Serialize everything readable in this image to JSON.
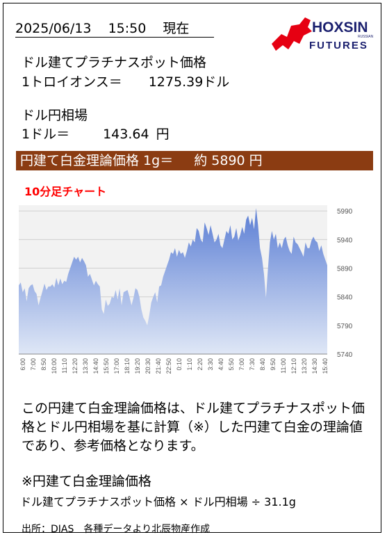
{
  "header": {
    "date": "2025/06/13",
    "time": "15:50",
    "status": "現在"
  },
  "logo": {
    "name": "HOXSIN",
    "sub": "FUTURES",
    "small": "RUSSIAN"
  },
  "platinum": {
    "title": "ドル建てプラチナスポット価格",
    "unit_label": "1トロイオンス＝",
    "value": "1275.39",
    "currency": "ドル"
  },
  "fx": {
    "title": "ドル円相場",
    "unit_label": "1ドル＝",
    "value": "143.64",
    "currency": "円"
  },
  "theory": {
    "label": "円建て白金理論価格 1g＝",
    "approx": "約",
    "value": "5890",
    "currency": "円"
  },
  "chart_title": "10分足チャート",
  "chart_data": {
    "type": "area",
    "ylim": [
      5740,
      6000
    ],
    "yticks": [
      5740,
      5790,
      5840,
      5890,
      5940,
      5990
    ],
    "xticklabels": [
      "6:00",
      "7:00",
      "8:50",
      "10:00",
      "11:10",
      "12:20",
      "13:30",
      "14:40",
      "15:50",
      "17:00",
      "18:10",
      "19:20",
      "20:30",
      "21:40",
      "22:50",
      "0:10",
      "1:10",
      "2:20",
      "3:30",
      "4:40",
      "5:50",
      "7:00",
      "7:30",
      "8:40",
      "9:50",
      "11:00",
      "12:10",
      "13:20",
      "14:30",
      "15:40"
    ],
    "values": [
      5860,
      5865,
      5848,
      5855,
      5832,
      5855,
      5860,
      5862,
      5850,
      5845,
      5825,
      5838,
      5850,
      5863,
      5852,
      5858,
      5858,
      5862,
      5856,
      5873,
      5860,
      5872,
      5862,
      5868,
      5866,
      5880,
      5890,
      5900,
      5910,
      5905,
      5910,
      5900,
      5908,
      5902,
      5895,
      5875,
      5880,
      5870,
      5860,
      5868,
      5862,
      5858,
      5818,
      5810,
      5835,
      5824,
      5828,
      5840,
      5838,
      5852,
      5835,
      5855,
      5825,
      5848,
      5850,
      5852,
      5840,
      5825,
      5838,
      5855,
      5852,
      5840,
      5818,
      5804,
      5798,
      5790,
      5808,
      5830,
      5840,
      5848,
      5830,
      5858,
      5860,
      5875,
      5885,
      5895,
      5905,
      5918,
      5915,
      5925,
      5910,
      5922,
      5915,
      5918,
      5908,
      5920,
      5935,
      5928,
      5940,
      5935,
      5960,
      5955,
      5940,
      5935,
      5970,
      5960,
      5948,
      5965,
      5950,
      5935,
      5940,
      5950,
      5930,
      5925,
      5940,
      5955,
      5950,
      5965,
      5940,
      5945,
      5960,
      5938,
      5948,
      5962,
      5950,
      5975,
      5982,
      5965,
      5978,
      5958,
      5995,
      5965,
      5925,
      5908,
      5880,
      5838,
      5888,
      5935,
      5955,
      5940,
      5950,
      5925,
      5935,
      5925,
      5940,
      5945,
      5930,
      5920,
      5915,
      5945,
      5935,
      5932,
      5925,
      5918,
      5910,
      5935,
      5925,
      5925,
      5938,
      5945,
      5938,
      5935,
      5920,
      5930,
      5915,
      5905,
      5895
    ]
  },
  "description": "この円建て白金理論価格は、ドル建てプラチナスポット価格とドル円相場を基に計算（※）した円建て白金の理論値であり、参考価格となります。",
  "formula": {
    "title": "※円建て白金理論価格",
    "text": "ドル建てプラチナスポット価格 × ドル円相場 ÷ 31.1g"
  },
  "source": "出所：DIAS　各種データより北辰物産作成",
  "colors": {
    "bar_bg": "#8b3c12",
    "chart_title": "#ff0000",
    "area_top": "#5b7ed4",
    "area_bottom": "#dfe7f6",
    "plot_bg": "#f2f2f2"
  }
}
